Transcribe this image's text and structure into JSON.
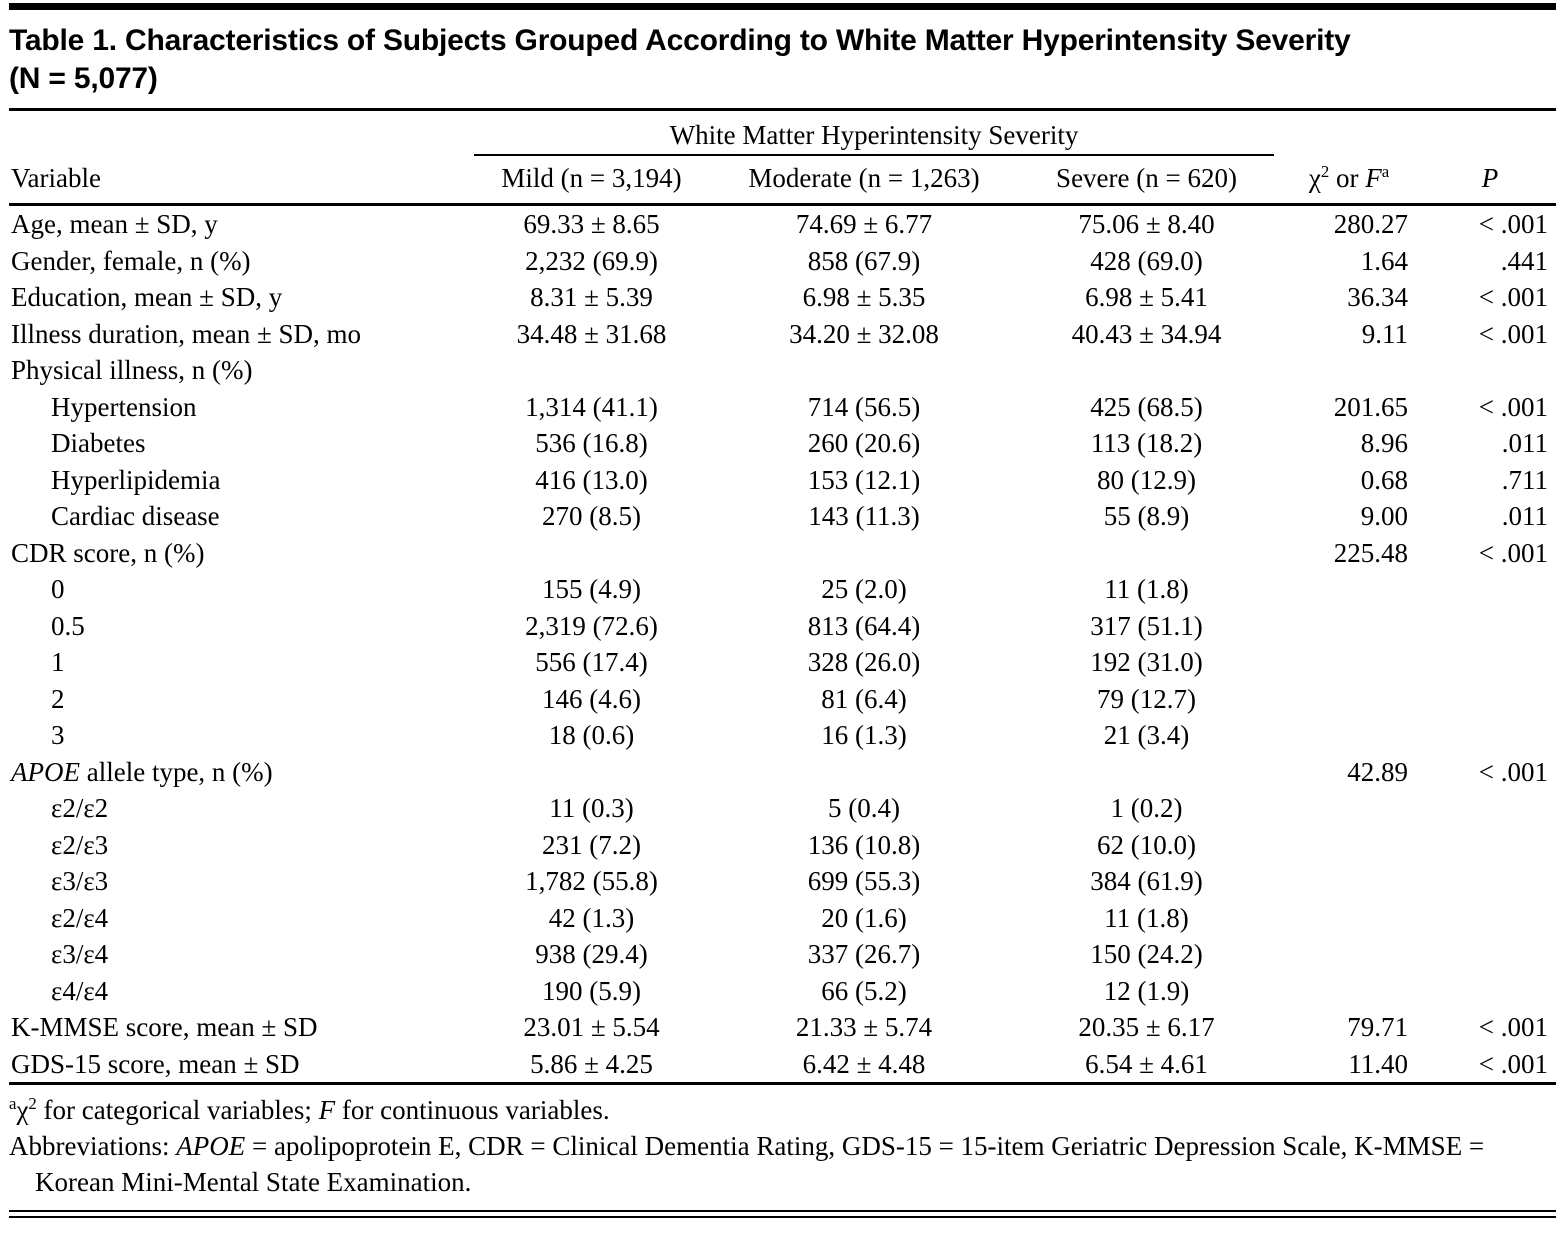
{
  "title": {
    "line1": "Table 1. Characteristics of Subjects Grouped According to White Matter Hyperintensity Severity",
    "line2": "(N = 5,077)"
  },
  "table": {
    "spanner": "White Matter Hyperintensity Severity",
    "headers": {
      "variable": "Variable",
      "mild": "Mild (n = 3,194)",
      "moderate": "Moderate (n = 1,263)",
      "severe": "Severe (n = 620)",
      "stat": {
        "chi": "χ",
        "chi_sup": "2",
        "mid": " or ",
        "f": "F",
        "f_sup": "a"
      },
      "p": "P"
    },
    "rows": [
      {
        "label": "Age, mean ± SD, y",
        "indent": false,
        "mild": "69.33 ± 8.65",
        "moderate": "74.69 ± 6.77",
        "severe": "75.06 ± 8.40",
        "stat": "280.27",
        "p": "< .001"
      },
      {
        "label": "Gender, female, n (%)",
        "indent": false,
        "mild": "2,232 (69.9)",
        "moderate": "858 (67.9)",
        "severe": "428 (69.0)",
        "stat": "1.64",
        "p": ".441"
      },
      {
        "label": "Education, mean ± SD, y",
        "indent": false,
        "mild": "8.31 ± 5.39",
        "moderate": "6.98 ± 5.35",
        "severe": "6.98 ± 5.41",
        "stat": "36.34",
        "p": "< .001"
      },
      {
        "label": "Illness duration, mean ± SD, mo",
        "indent": false,
        "mild": "34.48 ± 31.68",
        "moderate": "34.20 ± 32.08",
        "severe": "40.43 ± 34.94",
        "stat": "9.11",
        "p": "< .001"
      },
      {
        "label": "Physical illness, n (%)",
        "indent": false,
        "mild": "",
        "moderate": "",
        "severe": "",
        "stat": "",
        "p": ""
      },
      {
        "label": "Hypertension",
        "indent": true,
        "mild": "1,314 (41.1)",
        "moderate": "714 (56.5)",
        "severe": "425 (68.5)",
        "stat": "201.65",
        "p": "< .001"
      },
      {
        "label": "Diabetes",
        "indent": true,
        "mild": "536 (16.8)",
        "moderate": "260 (20.6)",
        "severe": "113 (18.2)",
        "stat": "8.96",
        "p": ".011"
      },
      {
        "label": "Hyperlipidemia",
        "indent": true,
        "mild": "416 (13.0)",
        "moderate": "153 (12.1)",
        "severe": "80 (12.9)",
        "stat": "0.68",
        "p": ".711"
      },
      {
        "label": "Cardiac disease",
        "indent": true,
        "mild": "270 (8.5)",
        "moderate": "143 (11.3)",
        "severe": "55 (8.9)",
        "stat": "9.00",
        "p": ".011"
      },
      {
        "label": "CDR score, n (%)",
        "indent": false,
        "mild": "",
        "moderate": "",
        "severe": "",
        "stat": "225.48",
        "p": "< .001"
      },
      {
        "label": "0",
        "indent": true,
        "mild": "155 (4.9)",
        "moderate": "25 (2.0)",
        "severe": "11 (1.8)",
        "stat": "",
        "p": ""
      },
      {
        "label": "0.5",
        "indent": true,
        "mild": "2,319 (72.6)",
        "moderate": "813 (64.4)",
        "severe": "317 (51.1)",
        "stat": "",
        "p": ""
      },
      {
        "label": "1",
        "indent": true,
        "mild": "556 (17.4)",
        "moderate": "328 (26.0)",
        "severe": "192 (31.0)",
        "stat": "",
        "p": ""
      },
      {
        "label": "2",
        "indent": true,
        "mild": "146 (4.6)",
        "moderate": "81 (6.4)",
        "severe": "79 (12.7)",
        "stat": "",
        "p": ""
      },
      {
        "label": "3",
        "indent": true,
        "mild": "18 (0.6)",
        "moderate": "16 (1.3)",
        "severe": "21 (3.4)",
        "stat": "",
        "p": ""
      },
      {
        "label": " allele type, n (%)",
        "em": "APOE",
        "indent": false,
        "mild": "",
        "moderate": "",
        "severe": "",
        "stat": "42.89",
        "p": "< .001"
      },
      {
        "label": "ε2/ε2",
        "indent": true,
        "mild": "11 (0.3)",
        "moderate": "5 (0.4)",
        "severe": "1 (0.2)",
        "stat": "",
        "p": ""
      },
      {
        "label": "ε2/ε3",
        "indent": true,
        "mild": "231 (7.2)",
        "moderate": "136 (10.8)",
        "severe": "62 (10.0)",
        "stat": "",
        "p": ""
      },
      {
        "label": "ε3/ε3",
        "indent": true,
        "mild": "1,782 (55.8)",
        "moderate": "699 (55.3)",
        "severe": "384 (61.9)",
        "stat": "",
        "p": ""
      },
      {
        "label": "ε2/ε4",
        "indent": true,
        "mild": "42 (1.3)",
        "moderate": "20 (1.6)",
        "severe": "11 (1.8)",
        "stat": "",
        "p": ""
      },
      {
        "label": "ε3/ε4",
        "indent": true,
        "mild": "938 (29.4)",
        "moderate": "337 (26.7)",
        "severe": "150 (24.2)",
        "stat": "",
        "p": ""
      },
      {
        "label": "ε4/ε4",
        "indent": true,
        "mild": "190 (5.9)",
        "moderate": "66 (5.2)",
        "severe": "12 (1.9)",
        "stat": "",
        "p": ""
      },
      {
        "label": "K-MMSE score, mean ± SD",
        "indent": false,
        "mild": "23.01 ± 5.54",
        "moderate": "21.33 ± 5.74",
        "severe": "20.35 ± 6.17",
        "stat": "79.71",
        "p": "< .001"
      },
      {
        "label": "GDS-15 score, mean ± SD",
        "indent": false,
        "mild": "5.86 ± 4.25",
        "moderate": "6.42 ± 4.48",
        "severe": "6.54 ± 4.61",
        "stat": "11.40",
        "p": "< .001"
      }
    ]
  },
  "footnotes": {
    "fn1": {
      "sup": "a",
      "chi": "χ",
      "chi_sup": "2",
      "text1": " for categorical variables; ",
      "f": "F",
      "text2": " for continuous variables."
    },
    "fn2": {
      "prefix": "Abbreviations: ",
      "apoe": "APOE",
      "text": " = apolipoprotein E, CDR = Clinical Dementia Rating, GDS-15 = 15-item Geriatric Depression Scale, K-MMSE = Korean Mini-Mental State Examination."
    }
  }
}
